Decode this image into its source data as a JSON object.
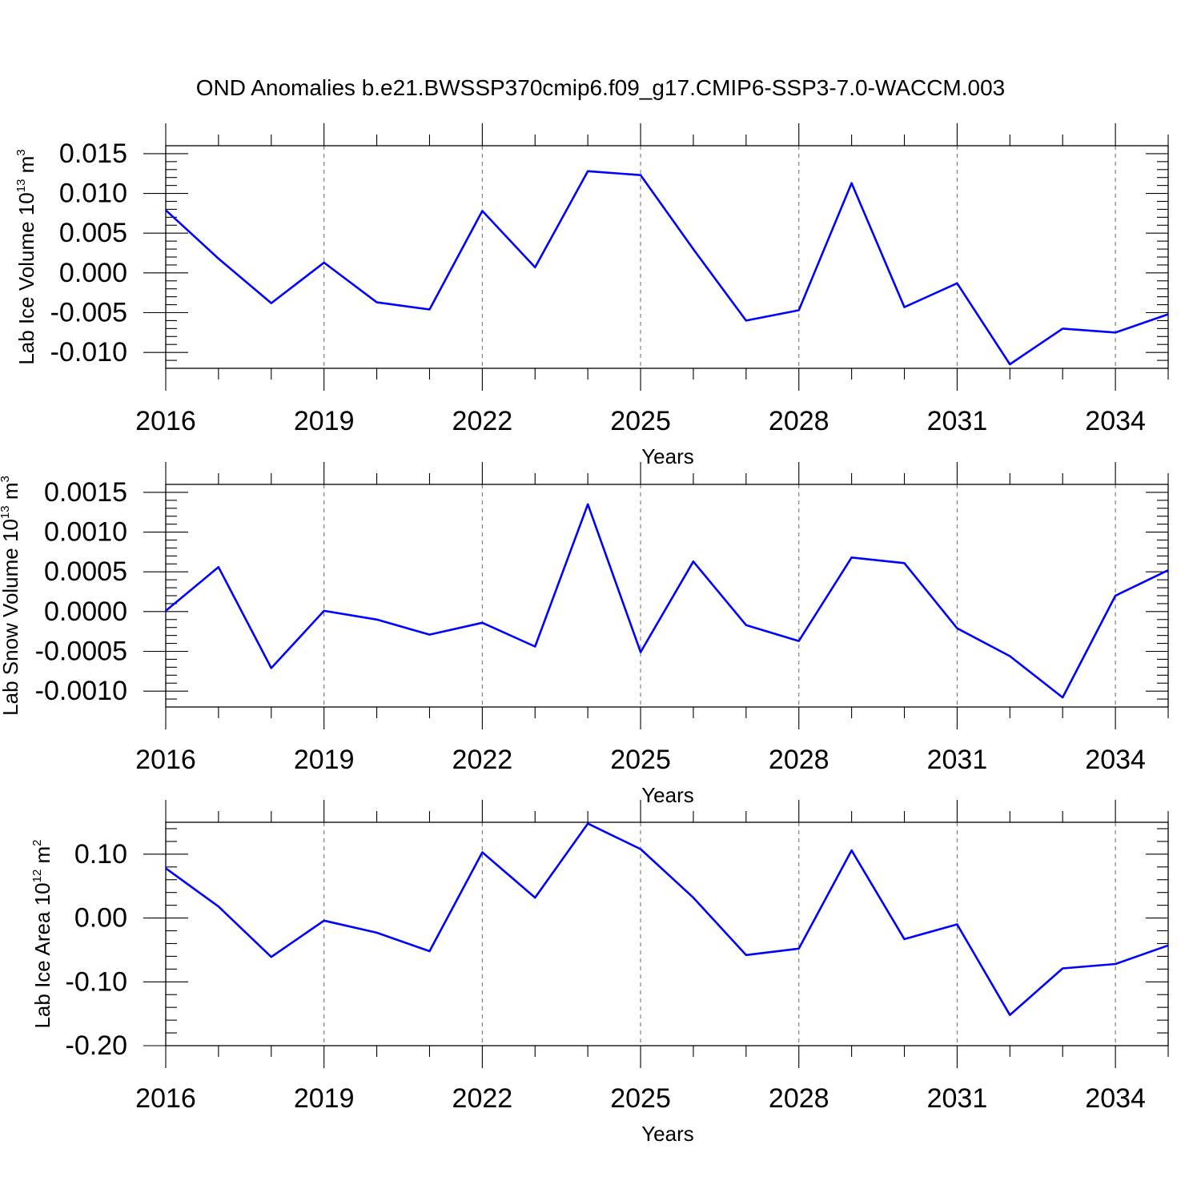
{
  "title": "OND Anomalies b.e21.BWSSP370cmip6.f09_g17.CMIP6-SSP3-7.0-WACCM.003",
  "colors": {
    "line": "#0000ff",
    "frame": "#000000",
    "grid": "#777777"
  },
  "chart_data": [
    {
      "type": "line",
      "ylabel": "Lab Ice Volume 10",
      "ylabel_exp": "13",
      "ylabel_unit": " m",
      "ylabel_unit_exp": "3",
      "xlabel": "Years",
      "xlim": [
        2016,
        2035
      ],
      "ylim": [
        -0.012,
        0.016
      ],
      "xticks": [
        2016,
        2019,
        2022,
        2025,
        2028,
        2031,
        2034
      ],
      "xtick_labels": [
        "2016",
        "2019",
        "2022",
        "2025",
        "2028",
        "2031",
        "2034"
      ],
      "xminor_step": 1,
      "yticks": [
        -0.01,
        -0.005,
        0,
        0.005,
        0.01,
        0.015
      ],
      "ytick_labels": [
        "-0.010",
        "-0.005",
        "0.000",
        "0.005",
        "0.010",
        "0.015"
      ],
      "yminor_step": 0.001,
      "grid": "x-dashed",
      "x": [
        2016,
        2017,
        2018,
        2019,
        2020,
        2021,
        2022,
        2023,
        2024,
        2025,
        2026,
        2027,
        2028,
        2029,
        2030,
        2031,
        2032,
        2033,
        2034,
        2035
      ],
      "values": [
        0.0079,
        0.0018,
        -0.0038,
        0.0013,
        -0.0037,
        -0.0046,
        0.0078,
        0.0007,
        0.0128,
        0.0123,
        0.003,
        -0.006,
        -0.0047,
        0.0113,
        -0.0043,
        -0.0013,
        -0.0115,
        -0.007,
        -0.0075,
        -0.0052
      ]
    },
    {
      "type": "line",
      "ylabel": "Lab Snow Volume 10",
      "ylabel_exp": "13",
      "ylabel_unit": " m",
      "ylabel_unit_exp": "3",
      "xlabel": "Years",
      "xlim": [
        2016,
        2035
      ],
      "ylim": [
        -0.0012,
        0.0016
      ],
      "xticks": [
        2016,
        2019,
        2022,
        2025,
        2028,
        2031,
        2034
      ],
      "xtick_labels": [
        "2016",
        "2019",
        "2022",
        "2025",
        "2028",
        "2031",
        "2034"
      ],
      "xminor_step": 1,
      "yticks": [
        -0.001,
        -0.0005,
        0,
        0.0005,
        0.001,
        0.0015
      ],
      "ytick_labels": [
        "-0.0010",
        "-0.0005",
        "0.0000",
        "0.0005",
        "0.0010",
        "0.0015"
      ],
      "yminor_step": 0.0001,
      "grid": "x-dashed",
      "x": [
        2016,
        2017,
        2018,
        2019,
        2020,
        2021,
        2022,
        2023,
        2024,
        2025,
        2026,
        2027,
        2028,
        2029,
        2030,
        2031,
        2032,
        2033,
        2034,
        2035
      ],
      "values": [
        1e-05,
        0.00056,
        -0.00071,
        1e-05,
        -0.0001,
        -0.00029,
        -0.00014,
        -0.00044,
        0.00135,
        -0.00051,
        0.00063,
        -0.00017,
        -0.00037,
        0.00068,
        0.00061,
        -0.00021,
        -0.00056,
        -0.00108,
        0.0002,
        0.00052
      ]
    },
    {
      "type": "line",
      "ylabel": "Lab Ice Area 10",
      "ylabel_exp": "12",
      "ylabel_unit": " m",
      "ylabel_unit_exp": "2",
      "xlabel": "Years",
      "xlim": [
        2016,
        2035
      ],
      "ylim": [
        -0.2,
        0.15
      ],
      "xticks": [
        2016,
        2019,
        2022,
        2025,
        2028,
        2031,
        2034
      ],
      "xtick_labels": [
        "2016",
        "2019",
        "2022",
        "2025",
        "2028",
        "2031",
        "2034"
      ],
      "xminor_step": 1,
      "yticks": [
        -0.2,
        -0.1,
        0,
        0.1
      ],
      "ytick_labels": [
        "-0.20",
        "-0.10",
        "0.00",
        "0.10"
      ],
      "yminor_step": 0.02,
      "grid": "x-dashed",
      "x": [
        2016,
        2017,
        2018,
        2019,
        2020,
        2021,
        2022,
        2023,
        2024,
        2025,
        2026,
        2027,
        2028,
        2029,
        2030,
        2031,
        2032,
        2033,
        2034,
        2035
      ],
      "values": [
        0.078,
        0.018,
        -0.061,
        -0.004,
        -0.023,
        -0.052,
        0.103,
        0.032,
        0.148,
        0.108,
        0.032,
        -0.058,
        -0.048,
        0.106,
        -0.033,
        -0.01,
        -0.152,
        -0.079,
        -0.072,
        -0.043
      ]
    }
  ]
}
